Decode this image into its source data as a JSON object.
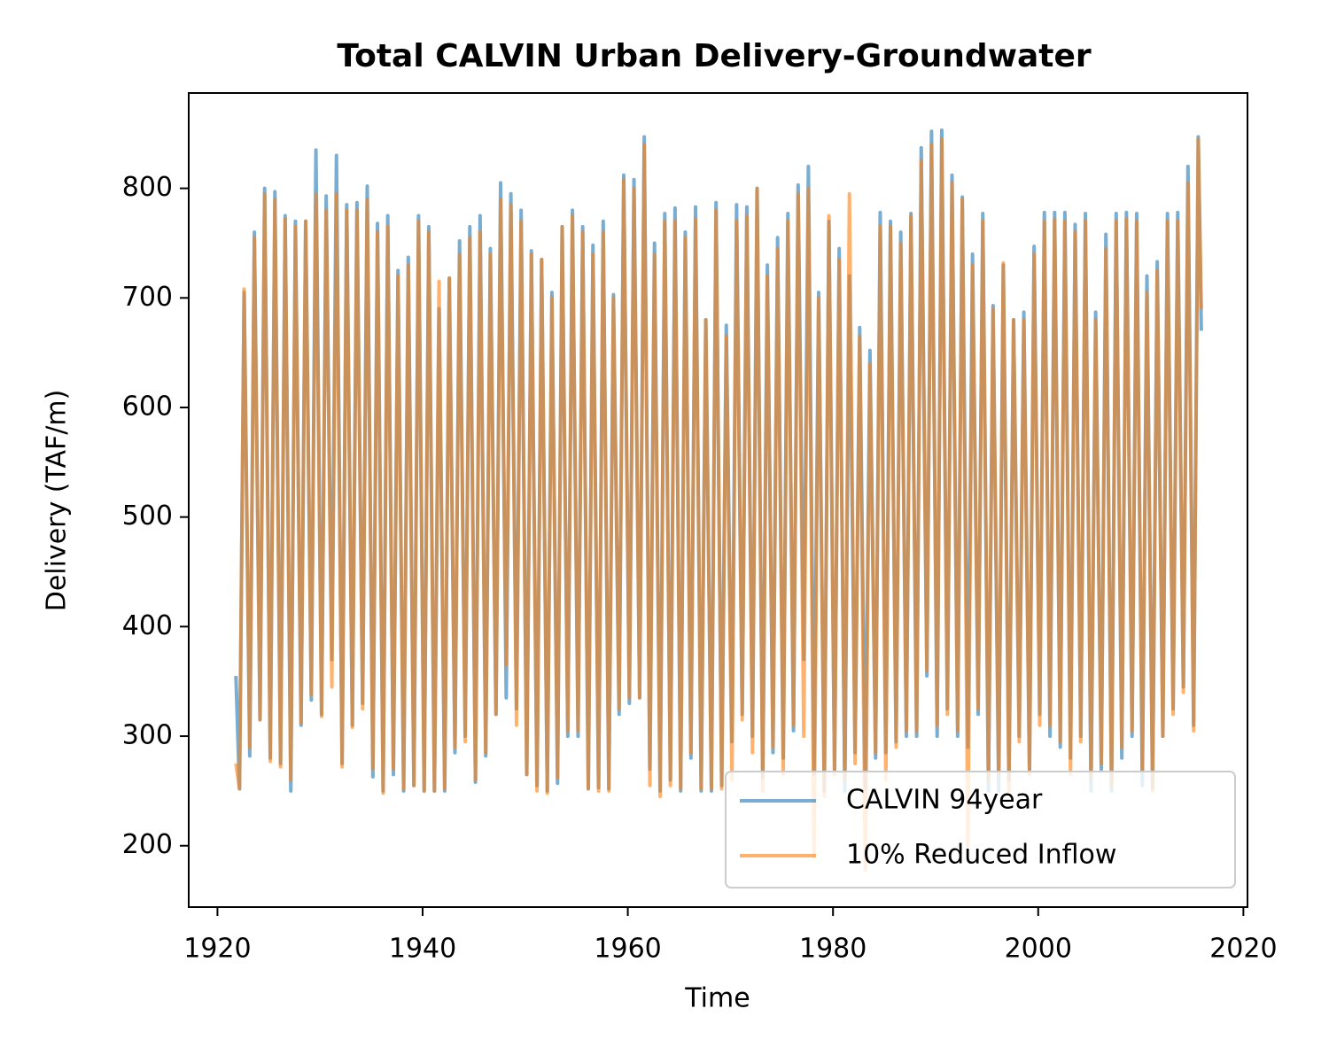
{
  "chart_data": {
    "type": "line",
    "title": "Total CALVIN Urban Delivery-Groundwater",
    "x_label": "Time",
    "y_label": "Delivery (TAF/m)",
    "xlim": [
      1917.2,
      2020.4
    ],
    "ylim": [
      144,
      887
    ],
    "xticks": [
      1920,
      1940,
      1960,
      1980,
      2000,
      2020
    ],
    "yticks": [
      200,
      300,
      400,
      500,
      600,
      700,
      800
    ],
    "legend": "lower right",
    "alpha": 0.6,
    "x": [
      1921.8,
      1922.15,
      1922.6,
      1923.15,
      1923.6,
      1924.15,
      1924.6,
      1925.15,
      1925.6,
      1926.15,
      1926.6,
      1927.15,
      1927.6,
      1928.15,
      1928.6,
      1929.15,
      1929.6,
      1930.15,
      1930.6,
      1931.15,
      1931.6,
      1932.15,
      1932.6,
      1933.15,
      1933.6,
      1934.15,
      1934.6,
      1935.15,
      1935.6,
      1936.15,
      1936.6,
      1937.15,
      1937.6,
      1938.15,
      1938.6,
      1939.15,
      1939.6,
      1940.15,
      1940.6,
      1941.15,
      1941.6,
      1942.15,
      1942.6,
      1943.15,
      1943.6,
      1944.15,
      1944.6,
      1945.15,
      1945.6,
      1946.15,
      1946.6,
      1947.15,
      1947.6,
      1948.15,
      1948.6,
      1949.15,
      1949.6,
      1950.15,
      1950.6,
      1951.15,
      1951.6,
      1952.15,
      1952.6,
      1953.15,
      1953.6,
      1954.15,
      1954.6,
      1955.15,
      1955.6,
      1956.15,
      1956.6,
      1957.15,
      1957.6,
      1958.15,
      1958.6,
      1959.15,
      1959.6,
      1960.15,
      1960.6,
      1961.15,
      1961.6,
      1962.15,
      1962.6,
      1963.15,
      1963.6,
      1964.15,
      1964.6,
      1965.15,
      1965.6,
      1966.15,
      1966.6,
      1967.15,
      1967.6,
      1968.15,
      1968.6,
      1969.15,
      1969.6,
      1970.15,
      1970.6,
      1971.15,
      1971.6,
      1972.15,
      1972.6,
      1973.15,
      1973.6,
      1974.15,
      1974.6,
      1975.15,
      1975.6,
      1976.15,
      1976.6,
      1977.15,
      1977.6,
      1978.15,
      1978.6,
      1979.15,
      1979.6,
      1980.15,
      1980.6,
      1981.15,
      1981.6,
      1982.15,
      1982.6,
      1983.15,
      1983.6,
      1984.15,
      1984.6,
      1985.15,
      1985.6,
      1986.15,
      1986.6,
      1987.15,
      1987.6,
      1988.15,
      1988.6,
      1989.15,
      1989.6,
      1990.15,
      1990.6,
      1991.15,
      1991.6,
      1992.15,
      1992.6,
      1993.15,
      1993.6,
      1994.15,
      1994.6,
      1995.15,
      1995.6,
      1996.15,
      1996.6,
      1997.15,
      1997.6,
      1998.15,
      1998.6,
      1999.15,
      1999.6,
      2000.15,
      2000.6,
      2001.15,
      2001.6,
      2002.15,
      2002.6,
      2003.15,
      2003.6,
      2004.15,
      2004.6,
      2005.15,
      2005.6,
      2006.15,
      2006.6,
      2007.15,
      2007.6,
      2008.15,
      2008.6,
      2009.15,
      2009.6,
      2010.15,
      2010.6,
      2011.15,
      2011.6,
      2012.15,
      2012.6,
      2013.15,
      2013.6,
      2014.15,
      2014.6,
      2015.15,
      2015.6,
      2015.9
    ],
    "series": [
      {
        "name": "CALVIN 94year",
        "color": "#1f77b4",
        "values": [
          355,
          252,
          705,
          282,
          760,
          315,
          800,
          280,
          797,
          275,
          775,
          250,
          770,
          310,
          770,
          333,
          835,
          320,
          793,
          370,
          830,
          275,
          785,
          310,
          787,
          330,
          802,
          263,
          768,
          250,
          775,
          265,
          725,
          250,
          737,
          255,
          775,
          250,
          765,
          250,
          690,
          250,
          718,
          285,
          752,
          300,
          765,
          258,
          775,
          282,
          745,
          320,
          805,
          335,
          795,
          325,
          780,
          265,
          743,
          255,
          735,
          250,
          705,
          257,
          765,
          300,
          780,
          300,
          765,
          252,
          748,
          253,
          770,
          252,
          703,
          320,
          812,
          330,
          808,
          335,
          847,
          270,
          750,
          250,
          777,
          260,
          782,
          250,
          760,
          280,
          783,
          250,
          680,
          250,
          787,
          255,
          675,
          295,
          785,
          320,
          783,
          300,
          800,
          262,
          730,
          285,
          755,
          280,
          777,
          305,
          803,
          370,
          820,
          265,
          705,
          250,
          770,
          270,
          745,
          250,
          720,
          285,
          673,
          252,
          652,
          280,
          778,
          285,
          770,
          295,
          760,
          300,
          777,
          300,
          837,
          355,
          852,
          300,
          853,
          325,
          812,
          300,
          792,
          290,
          740,
          320,
          777,
          250,
          693,
          250,
          730,
          260,
          680,
          300,
          687,
          270,
          747,
          320,
          778,
          300,
          778,
          290,
          778,
          280,
          767,
          300,
          777,
          250,
          687,
          270,
          758,
          250,
          777,
          280,
          778,
          300,
          777,
          255,
          720,
          252,
          733,
          300,
          777,
          325,
          778,
          345,
          820,
          310,
          847,
          670
        ]
      },
      {
        "name": "10% Reduced Inflow",
        "color": "#ff7f0e",
        "values": [
          275,
          252,
          708,
          290,
          755,
          315,
          795,
          277,
          790,
          272,
          772,
          260,
          765,
          312,
          770,
          338,
          795,
          318,
          780,
          345,
          795,
          272,
          780,
          308,
          780,
          325,
          790,
          270,
          760,
          248,
          765,
          270,
          720,
          252,
          730,
          255,
          770,
          250,
          760,
          250,
          715,
          252,
          718,
          290,
          740,
          295,
          755,
          260,
          760,
          285,
          740,
          320,
          790,
          365,
          785,
          310,
          770,
          265,
          740,
          250,
          735,
          248,
          700,
          262,
          765,
          305,
          775,
          305,
          760,
          252,
          740,
          250,
          760,
          250,
          700,
          325,
          808,
          335,
          800,
          335,
          840,
          255,
          740,
          245,
          770,
          255,
          770,
          252,
          755,
          285,
          772,
          252,
          680,
          252,
          780,
          252,
          665,
          260,
          770,
          315,
          775,
          285,
          800,
          250,
          720,
          290,
          745,
          265,
          770,
          310,
          795,
          300,
          800,
          190,
          700,
          245,
          775,
          265,
          735,
          260,
          795,
          275,
          665,
          178,
          640,
          285,
          765,
          260,
          765,
          290,
          750,
          305,
          775,
          305,
          825,
          360,
          840,
          310,
          845,
          320,
          805,
          305,
          790,
          200,
          730,
          325,
          770,
          260,
          690,
          265,
          732,
          250,
          680,
          295,
          680,
          265,
          740,
          310,
          770,
          310,
          772,
          295,
          770,
          265,
          760,
          295,
          770,
          260,
          680,
          275,
          745,
          255,
          770,
          290,
          772,
          305,
          770,
          270,
          705,
          250,
          725,
          300,
          770,
          320,
          770,
          340,
          805,
          305,
          845,
          690
        ]
      }
    ]
  }
}
